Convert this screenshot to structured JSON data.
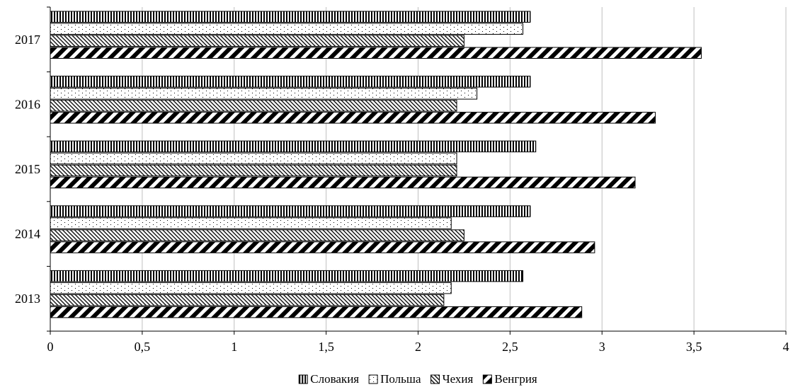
{
  "chart_data": {
    "type": "bar",
    "orientation": "horizontal",
    "categories": [
      "2013",
      "2014",
      "2015",
      "2016",
      "2017"
    ],
    "series": [
      {
        "name": "Словакия",
        "pattern": "vertical-lines",
        "values": [
          2.57,
          2.61,
          2.64,
          2.61,
          2.61
        ]
      },
      {
        "name": "Польша",
        "pattern": "dots",
        "values": [
          2.18,
          2.18,
          2.21,
          2.32,
          2.57
        ]
      },
      {
        "name": "Чехия",
        "pattern": "diagonal-dense",
        "values": [
          2.14,
          2.25,
          2.21,
          2.21,
          2.25
        ]
      },
      {
        "name": "Венгрия",
        "pattern": "diagonal-wide",
        "values": [
          2.89,
          2.96,
          3.18,
          3.29,
          3.54
        ]
      }
    ],
    "xlim": [
      0,
      4
    ],
    "x_ticks": [
      "0",
      "0,5",
      "1",
      "1,5",
      "2",
      "2,5",
      "3",
      "3,5",
      "4"
    ],
    "grid": "vertical",
    "legend": "bottom",
    "colors": {
      "ink": "#000000",
      "background": "#ffffff",
      "grid": "#bfbfbf"
    }
  }
}
